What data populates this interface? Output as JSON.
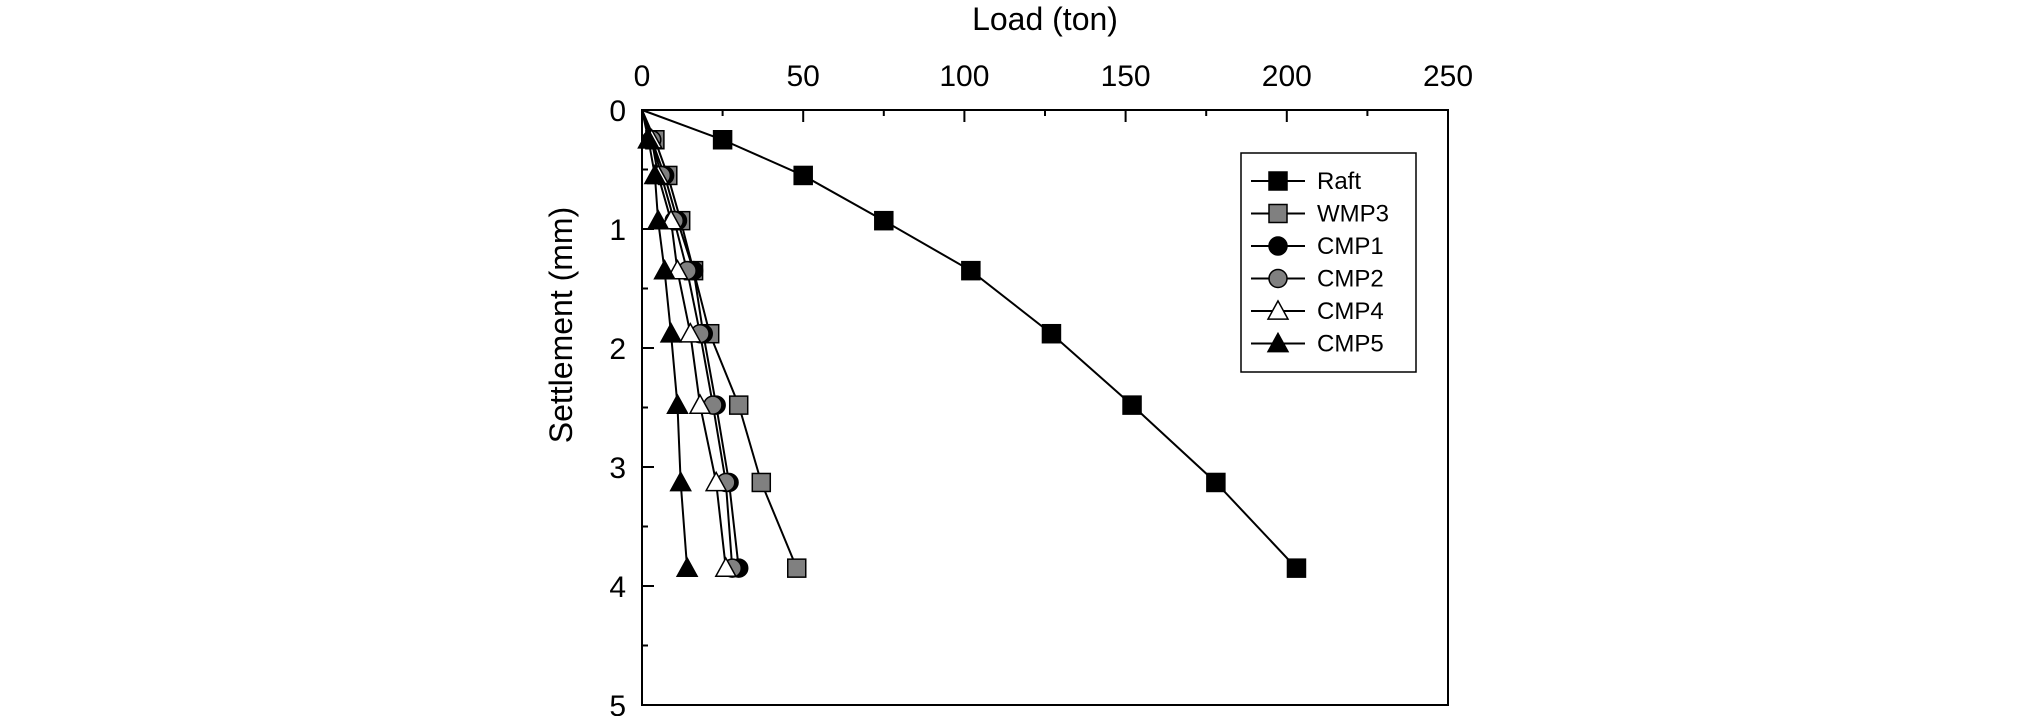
{
  "chart_data": {
    "type": "scatter",
    "xlabel": "Load (ton)",
    "ylabel": "Settlement (mm)",
    "xlim": [
      0,
      250
    ],
    "ylim": [
      0,
      5
    ],
    "y_inverted": true,
    "x_axis_position": "top",
    "x_ticks": [
      0,
      50,
      100,
      150,
      200,
      250
    ],
    "y_ticks": [
      0,
      1,
      2,
      3,
      4,
      5
    ],
    "grid": false,
    "legend_position": "top-right",
    "series": [
      {
        "name": "Raft",
        "marker": "square",
        "color": "#000000",
        "points": [
          [
            0,
            0
          ],
          [
            25,
            0.25
          ],
          [
            50,
            0.55
          ],
          [
            75,
            0.93
          ],
          [
            102,
            1.35
          ],
          [
            127,
            1.88
          ],
          [
            152,
            2.48
          ],
          [
            178,
            3.13
          ],
          [
            203,
            3.85
          ]
        ]
      },
      {
        "name": "WMP3",
        "marker": "square",
        "color": "#808080",
        "points": [
          [
            0,
            0
          ],
          [
            4,
            0.25
          ],
          [
            8,
            0.55
          ],
          [
            12,
            0.93
          ],
          [
            16,
            1.35
          ],
          [
            21,
            1.88
          ],
          [
            30,
            2.48
          ],
          [
            37,
            3.13
          ],
          [
            48,
            3.85
          ]
        ]
      },
      {
        "name": "CMP1",
        "marker": "circle",
        "color": "#000000",
        "points": [
          [
            0,
            0
          ],
          [
            3,
            0.25
          ],
          [
            7,
            0.55
          ],
          [
            11,
            0.93
          ],
          [
            16,
            1.35
          ],
          [
            19,
            1.88
          ],
          [
            23,
            2.48
          ],
          [
            27,
            3.13
          ],
          [
            30,
            3.85
          ]
        ]
      },
      {
        "name": "CMP2",
        "marker": "circle",
        "color": "#808080",
        "points": [
          [
            0,
            0
          ],
          [
            3,
            0.25
          ],
          [
            6,
            0.55
          ],
          [
            10,
            0.93
          ],
          [
            14,
            1.35
          ],
          [
            18,
            1.88
          ],
          [
            22,
            2.48
          ],
          [
            26,
            3.13
          ],
          [
            28,
            3.85
          ]
        ]
      },
      {
        "name": "CMP4",
        "marker": "triangle-open",
        "color": "#ffffff",
        "points": [
          [
            0,
            0
          ],
          [
            3,
            0.25
          ],
          [
            5,
            0.55
          ],
          [
            9,
            0.93
          ],
          [
            11,
            1.35
          ],
          [
            15,
            1.88
          ],
          [
            18,
            2.48
          ],
          [
            23,
            3.13
          ],
          [
            26,
            3.85
          ]
        ]
      },
      {
        "name": "CMP5",
        "marker": "triangle",
        "color": "#000000",
        "points": [
          [
            0,
            0
          ],
          [
            2,
            0.25
          ],
          [
            4,
            0.55
          ],
          [
            5,
            0.93
          ],
          [
            7,
            1.35
          ],
          [
            9,
            1.88
          ],
          [
            11,
            2.48
          ],
          [
            12,
            3.13
          ],
          [
            14,
            3.85
          ]
        ]
      }
    ]
  }
}
